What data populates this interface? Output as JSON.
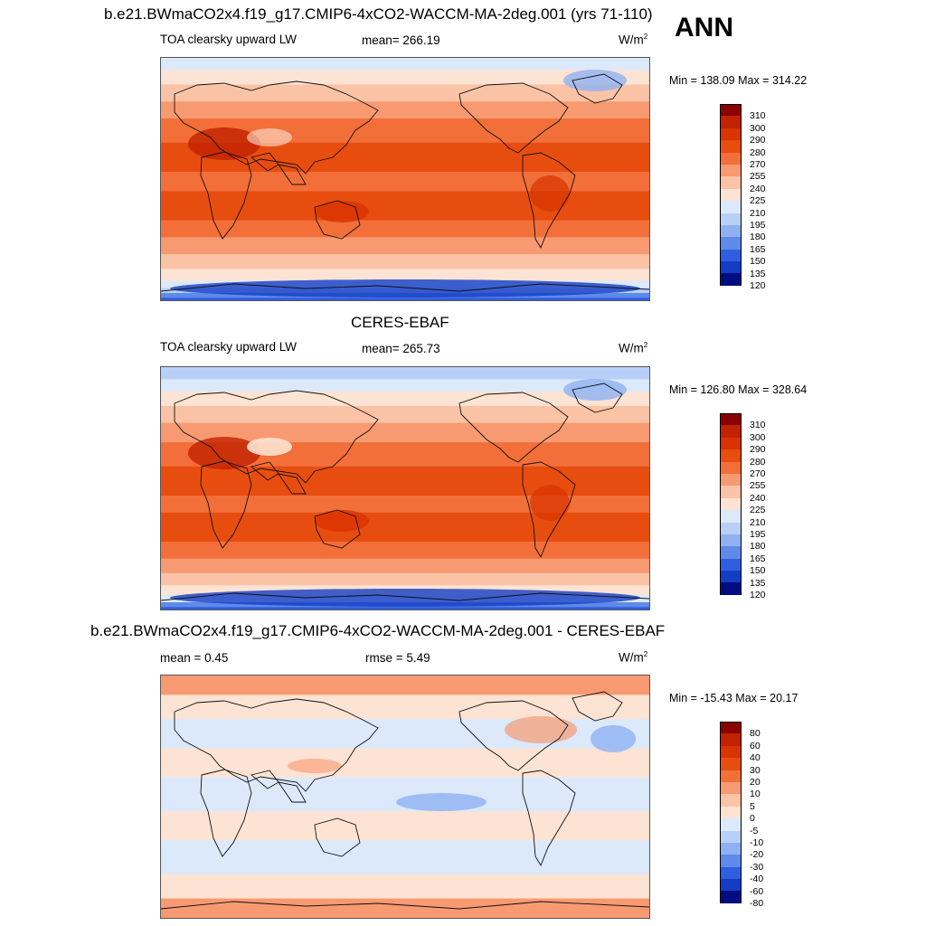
{
  "panels": [
    {
      "title": "b.e21.BWmaCO2x4.f19_g17.CMIP6-4xCO2-WACCM-MA-2deg.001 (yrs 71-110)",
      "left_label": "TOA clearsky upward LW",
      "center_label": "mean= 266.19",
      "units": "W/m",
      "units_sup": "2",
      "minmax": "Min = 138.09 Max = 314.22",
      "levels": [
        "310",
        "300",
        "290",
        "280",
        "270",
        "255",
        "240",
        "225",
        "210",
        "195",
        "180",
        "165",
        "150",
        "135",
        "120"
      ],
      "colors": [
        "#8b0000",
        "#c12200",
        "#d93300",
        "#e84d10",
        "#f26f3a",
        "#f79a72",
        "#fbc3a6",
        "#fde3d3",
        "#dbe9fb",
        "#b8d0f7",
        "#8fb1f2",
        "#5f8ae9",
        "#2f5fe0",
        "#143cc4",
        "#000c7f"
      ]
    },
    {
      "title": "CERES-EBAF",
      "left_label": "TOA clearsky upward LW",
      "center_label": "mean= 265.73",
      "units": "W/m",
      "units_sup": "2",
      "minmax": "Min = 126.80 Max = 328.64",
      "levels": [
        "310",
        "300",
        "290",
        "280",
        "270",
        "255",
        "240",
        "225",
        "210",
        "195",
        "180",
        "165",
        "150",
        "135",
        "120"
      ],
      "colors": [
        "#8b0000",
        "#c12200",
        "#d93300",
        "#e84d10",
        "#f26f3a",
        "#f79a72",
        "#fbc3a6",
        "#fde3d3",
        "#dbe9fb",
        "#b8d0f7",
        "#8fb1f2",
        "#5f8ae9",
        "#2f5fe0",
        "#143cc4",
        "#000c7f"
      ]
    },
    {
      "title": "b.e21.BWmaCO2x4.f19_g17.CMIP6-4xCO2-WACCM-MA-2deg.001 - CERES-EBAF",
      "left_label": "mean =   0.45",
      "center_label": "rmse =   5.49",
      "units": "W/m",
      "units_sup": "2",
      "minmax": "Min = -15.43 Max =  20.17",
      "levels": [
        "80",
        "60",
        "40",
        "30",
        "20",
        "10",
        "5",
        "0",
        "-5",
        "-10",
        "-20",
        "-30",
        "-40",
        "-60",
        "-80"
      ],
      "colors": [
        "#8b0000",
        "#c12200",
        "#d93300",
        "#e84d10",
        "#f26f3a",
        "#f79a72",
        "#fbc3a6",
        "#fde3d3",
        "#dbe9fb",
        "#b8d0f7",
        "#8fb1f2",
        "#5f8ae9",
        "#2f5fe0",
        "#143cc4",
        "#000c7f"
      ]
    }
  ],
  "season": "ANN",
  "chart_data": [
    {
      "type": "heatmap",
      "title": "b.e21.BWmaCO2x4.f19_g17.CMIP6-4xCO2-WACCM-MA-2deg.001 (yrs 71-110)",
      "variable": "TOA clearsky upward LW",
      "units": "W/m2",
      "mean": 266.19,
      "min": 138.09,
      "max": 314.22,
      "colorbar_levels": [
        120,
        135,
        150,
        165,
        180,
        195,
        210,
        225,
        240,
        255,
        270,
        280,
        290,
        300,
        310
      ]
    },
    {
      "type": "heatmap",
      "title": "CERES-EBAF",
      "variable": "TOA clearsky upward LW",
      "units": "W/m2",
      "mean": 265.73,
      "min": 126.8,
      "max": 328.64,
      "colorbar_levels": [
        120,
        135,
        150,
        165,
        180,
        195,
        210,
        225,
        240,
        255,
        270,
        280,
        290,
        300,
        310
      ]
    },
    {
      "type": "heatmap",
      "title": "b.e21.BWmaCO2x4.f19_g17.CMIP6-4xCO2-WACCM-MA-2deg.001 - CERES-EBAF",
      "units": "W/m2",
      "mean": 0.45,
      "rmse": 5.49,
      "min": -15.43,
      "max": 20.17,
      "colorbar_levels": [
        -80,
        -60,
        -40,
        -30,
        -20,
        -10,
        -5,
        0,
        5,
        10,
        20,
        30,
        40,
        60,
        80
      ]
    }
  ]
}
